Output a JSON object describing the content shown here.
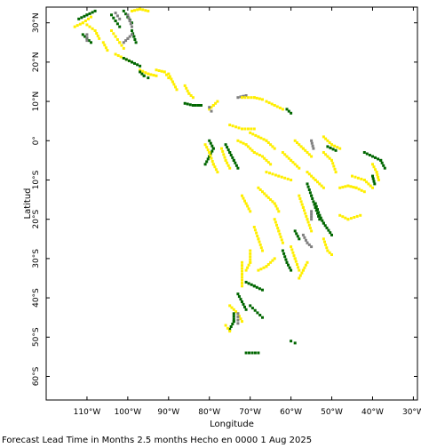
{
  "map": {
    "x_axis_title": "Longitude",
    "y_axis_title": "Latitud",
    "caption": "Forecast Lead Time in Months 2.5 months Hecho en 0000 1 Aug 2025",
    "lon_range": [
      -120,
      -29
    ],
    "lat_range": [
      -66,
      34
    ],
    "lon_ticks": [
      {
        "value": -110,
        "label": "110°W"
      },
      {
        "value": -100,
        "label": "100°W"
      },
      {
        "value": -90,
        "label": "90°W"
      },
      {
        "value": -80,
        "label": "80°W"
      },
      {
        "value": -70,
        "label": "70°W"
      },
      {
        "value": -60,
        "label": "60°W"
      },
      {
        "value": -50,
        "label": "50°W"
      },
      {
        "value": -40,
        "label": "40°W"
      },
      {
        "value": -30,
        "label": "30°W"
      }
    ],
    "lat_ticks": [
      {
        "value": 30,
        "label": "30°N"
      },
      {
        "value": 20,
        "label": "20°N"
      },
      {
        "value": 10,
        "label": "10°N"
      },
      {
        "value": 0,
        "label": "0°"
      },
      {
        "value": -10,
        "label": "10°S"
      },
      {
        "value": -20,
        "label": "20°S"
      },
      {
        "value": -30,
        "label": "30°S"
      },
      {
        "value": -40,
        "label": "40°S"
      },
      {
        "value": -50,
        "label": "50°S"
      },
      {
        "value": -60,
        "label": "60°S"
      }
    ],
    "category_colors": {
      "yellow": "#ffee00",
      "green": "#006600",
      "gray": "#808080",
      "lightgreen": "#33cc33"
    },
    "segments": [
      {
        "c": "green",
        "pts": [
          [
            -112,
            31
          ],
          [
            -110,
            32
          ],
          [
            -108,
            33
          ]
        ]
      },
      {
        "c": "yellow",
        "pts": [
          [
            -113,
            29
          ],
          [
            -111,
            30
          ],
          [
            -109,
            31.5
          ]
        ]
      },
      {
        "c": "green",
        "pts": [
          [
            -111,
            27
          ],
          [
            -109,
            25
          ]
        ]
      },
      {
        "c": "yellow",
        "pts": [
          [
            -110,
            29.5
          ],
          [
            -108,
            28
          ],
          [
            -107,
            26
          ]
        ]
      },
      {
        "c": "gray",
        "pts": [
          [
            -110,
            27
          ],
          [
            -110,
            25.5
          ]
        ]
      },
      {
        "c": "green",
        "pts": [
          [
            -104,
            32
          ],
          [
            -103,
            30.5
          ],
          [
            -102,
            29
          ]
        ]
      },
      {
        "c": "gray",
        "pts": [
          [
            -103,
            32.5
          ],
          [
            -102,
            31
          ]
        ]
      },
      {
        "c": "green",
        "pts": [
          [
            -101,
            33
          ],
          [
            -100,
            31.5
          ],
          [
            -99,
            30
          ]
        ]
      },
      {
        "c": "gray",
        "pts": [
          [
            -100,
            32
          ],
          [
            -99.5,
            30.5
          ],
          [
            -99,
            29
          ]
        ]
      },
      {
        "c": "yellow",
        "pts": [
          [
            -99,
            33
          ],
          [
            -97,
            33.5
          ],
          [
            -95,
            33
          ]
        ]
      },
      {
        "c": "green",
        "pts": [
          [
            -99,
            28
          ],
          [
            -98.5,
            26.5
          ],
          [
            -98,
            25
          ]
        ]
      },
      {
        "c": "gray",
        "pts": [
          [
            -99,
            27
          ],
          [
            -100,
            26
          ],
          [
            -101,
            25
          ]
        ]
      },
      {
        "c": "yellow",
        "pts": [
          [
            -104,
            28
          ],
          [
            -103,
            26.5
          ],
          [
            -102,
            25
          ],
          [
            -101,
            23.5
          ]
        ]
      },
      {
        "c": "yellow",
        "pts": [
          [
            -106,
            25
          ],
          [
            -105,
            23
          ]
        ]
      },
      {
        "c": "yellow",
        "pts": [
          [
            -103,
            22
          ],
          [
            -101,
            21
          ],
          [
            -99,
            20
          ]
        ]
      },
      {
        "c": "green",
        "pts": [
          [
            -101,
            21
          ],
          [
            -99,
            20
          ],
          [
            -97,
            19
          ]
        ]
      },
      {
        "c": "yellow",
        "pts": [
          [
            -97,
            18
          ],
          [
            -95,
            17
          ],
          [
            -93,
            16.5
          ]
        ]
      },
      {
        "c": "green",
        "pts": [
          [
            -97,
            17.5
          ],
          [
            -96,
            16.5
          ],
          [
            -95,
            16
          ]
        ]
      },
      {
        "c": "yellow",
        "pts": [
          [
            -93,
            18
          ],
          [
            -91,
            17.5
          ],
          [
            -90,
            16
          ]
        ]
      },
      {
        "c": "yellow",
        "pts": [
          [
            -90,
            17
          ],
          [
            -89,
            15
          ],
          [
            -88,
            13
          ]
        ]
      },
      {
        "c": "yellow",
        "pts": [
          [
            -86,
            14
          ],
          [
            -85,
            12
          ],
          [
            -84,
            11
          ]
        ]
      },
      {
        "c": "green",
        "pts": [
          [
            -86,
            9.5
          ],
          [
            -84,
            9
          ],
          [
            -82,
            9
          ]
        ]
      },
      {
        "c": "yellow",
        "pts": [
          [
            -80,
            8
          ],
          [
            -79,
            9
          ],
          [
            -78,
            10
          ]
        ]
      },
      {
        "c": "gray",
        "pts": [
          [
            -80,
            8.5
          ],
          [
            -79.5,
            7.5
          ]
        ]
      },
      {
        "c": "gray",
        "pts": [
          [
            -73,
            11
          ],
          [
            -71,
            11.5
          ]
        ]
      },
      {
        "c": "yellow",
        "pts": [
          [
            -72,
            11
          ],
          [
            -69,
            11
          ],
          [
            -67,
            10.5
          ]
        ]
      },
      {
        "c": "yellow",
        "pts": [
          [
            -66,
            10
          ],
          [
            -64,
            9
          ],
          [
            -62,
            8
          ]
        ]
      },
      {
        "c": "green",
        "pts": [
          [
            -61,
            8
          ],
          [
            -60,
            7
          ]
        ]
      },
      {
        "c": "green",
        "pts": [
          [
            -80,
            0
          ],
          [
            -79,
            -2
          ],
          [
            -80,
            -4
          ],
          [
            -81,
            -6
          ]
        ]
      },
      {
        "c": "yellow",
        "pts": [
          [
            -81,
            -1
          ],
          [
            -80,
            -3
          ],
          [
            -79,
            -6
          ],
          [
            -78,
            -8
          ]
        ]
      },
      {
        "c": "green",
        "pts": [
          [
            -76,
            -1
          ],
          [
            -75,
            -3
          ],
          [
            -74,
            -5
          ],
          [
            -73,
            -7
          ]
        ]
      },
      {
        "c": "yellow",
        "pts": [
          [
            -77,
            -2
          ],
          [
            -76,
            -5
          ],
          [
            -75,
            -7
          ]
        ]
      },
      {
        "c": "yellow",
        "pts": [
          [
            -73,
            0
          ],
          [
            -71,
            -1
          ],
          [
            -69,
            -3
          ],
          [
            -67,
            -4
          ],
          [
            -65,
            -6
          ]
        ]
      },
      {
        "c": "yellow",
        "pts": [
          [
            -70,
            2
          ],
          [
            -68,
            1
          ],
          [
            -66,
            0
          ],
          [
            -64,
            -2
          ]
        ]
      },
      {
        "c": "yellow",
        "pts": [
          [
            -75,
            4
          ],
          [
            -72,
            3
          ],
          [
            -69,
            3
          ]
        ]
      },
      {
        "c": "yellow",
        "pts": [
          [
            -66,
            -8
          ],
          [
            -63,
            -9
          ],
          [
            -60,
            -10
          ]
        ]
      },
      {
        "c": "yellow",
        "pts": [
          [
            -62,
            -3
          ],
          [
            -60,
            -5
          ],
          [
            -58,
            -7
          ]
        ]
      },
      {
        "c": "yellow",
        "pts": [
          [
            -59,
            0
          ],
          [
            -57,
            -2
          ],
          [
            -55,
            -4
          ]
        ]
      },
      {
        "c": "gray",
        "pts": [
          [
            -55,
            0
          ],
          [
            -54.5,
            -2
          ]
        ]
      },
      {
        "c": "yellow",
        "pts": [
          [
            -52,
            1
          ],
          [
            -50,
            -1
          ],
          [
            -48,
            -2
          ]
        ]
      },
      {
        "c": "green",
        "pts": [
          [
            -51,
            -1.5
          ],
          [
            -49,
            -2.5
          ]
        ]
      },
      {
        "c": "yellow",
        "pts": [
          [
            -52,
            -3
          ],
          [
            -50,
            -5
          ],
          [
            -49,
            -8
          ]
        ]
      },
      {
        "c": "yellow",
        "pts": [
          [
            -56,
            -8
          ],
          [
            -54,
            -10
          ],
          [
            -52,
            -12
          ]
        ]
      },
      {
        "c": "yellow",
        "pts": [
          [
            -45,
            -9
          ],
          [
            -42,
            -10
          ],
          [
            -40,
            -12
          ]
        ]
      },
      {
        "c": "green",
        "pts": [
          [
            -42,
            -3
          ],
          [
            -40,
            -4
          ],
          [
            -38,
            -5
          ],
          [
            -37,
            -7
          ]
        ]
      },
      {
        "c": "yellow",
        "pts": [
          [
            -40,
            -6
          ],
          [
            -39,
            -8
          ],
          [
            -38.5,
            -10
          ]
        ]
      },
      {
        "c": "green",
        "pts": [
          [
            -40,
            -9
          ],
          [
            -39.5,
            -11
          ]
        ]
      },
      {
        "c": "yellow",
        "pts": [
          [
            -48,
            -12
          ],
          [
            -46,
            -11.5
          ],
          [
            -44,
            -12
          ],
          [
            -42,
            -13
          ]
        ]
      },
      {
        "c": "yellow",
        "pts": [
          [
            -68,
            -12
          ],
          [
            -66,
            -14
          ],
          [
            -64,
            -16
          ],
          [
            -63,
            -18
          ]
        ]
      },
      {
        "c": "yellow",
        "pts": [
          [
            -72,
            -14
          ],
          [
            -71,
            -16
          ],
          [
            -70,
            -18
          ]
        ]
      },
      {
        "c": "yellow",
        "pts": [
          [
            -58,
            -14
          ],
          [
            -57,
            -17
          ],
          [
            -56,
            -20
          ],
          [
            -55,
            -23
          ]
        ]
      },
      {
        "c": "green",
        "pts": [
          [
            -56,
            -11
          ],
          [
            -55,
            -14
          ],
          [
            -54,
            -17
          ],
          [
            -53,
            -20
          ]
        ]
      },
      {
        "c": "green",
        "pts": [
          [
            -54,
            -16
          ],
          [
            -53,
            -19
          ],
          [
            -52,
            -21
          ],
          [
            -50,
            -24
          ]
        ]
      },
      {
        "c": "gray",
        "pts": [
          [
            -55,
            -18
          ],
          [
            -55,
            -20
          ]
        ]
      },
      {
        "c": "yellow",
        "pts": [
          [
            -64,
            -20
          ],
          [
            -63,
            -23
          ],
          [
            -62,
            -26
          ]
        ]
      },
      {
        "c": "yellow",
        "pts": [
          [
            -69,
            -22
          ],
          [
            -68,
            -25
          ],
          [
            -67,
            -28
          ]
        ]
      },
      {
        "c": "gray",
        "pts": [
          [
            -57,
            -24
          ],
          [
            -56,
            -26
          ],
          [
            -55,
            -27
          ]
        ]
      },
      {
        "c": "green",
        "pts": [
          [
            -59,
            -23
          ],
          [
            -58,
            -25
          ]
        ]
      },
      {
        "c": "yellow",
        "pts": [
          [
            -52,
            -25
          ],
          [
            -51,
            -28
          ],
          [
            -50,
            -29
          ]
        ]
      },
      {
        "c": "yellow",
        "pts": [
          [
            -48,
            -19
          ],
          [
            -46,
            -20
          ],
          [
            -43,
            -19
          ]
        ]
      },
      {
        "c": "yellow",
        "pts": [
          [
            -60,
            -27
          ],
          [
            -59,
            -30
          ],
          [
            -58,
            -33
          ]
        ]
      },
      {
        "c": "green",
        "pts": [
          [
            -62,
            -28
          ],
          [
            -61,
            -31
          ],
          [
            -60,
            -33
          ]
        ]
      },
      {
        "c": "yellow",
        "pts": [
          [
            -64,
            -30
          ],
          [
            -66,
            -32
          ],
          [
            -68,
            -33
          ]
        ]
      },
      {
        "c": "yellow",
        "pts": [
          [
            -70,
            -28
          ],
          [
            -70,
            -31
          ],
          [
            -71,
            -33
          ]
        ]
      },
      {
        "c": "yellow",
        "pts": [
          [
            -56,
            -31
          ],
          [
            -57,
            -33
          ],
          [
            -58,
            -35
          ]
        ]
      },
      {
        "c": "green",
        "pts": [
          [
            -71,
            -36
          ],
          [
            -69,
            -37
          ],
          [
            -67,
            -38
          ]
        ]
      },
      {
        "c": "yellow",
        "pts": [
          [
            -72,
            -31
          ],
          [
            -72,
            -34
          ],
          [
            -72,
            -37
          ]
        ]
      },
      {
        "c": "green",
        "pts": [
          [
            -73,
            -39
          ],
          [
            -72,
            -41
          ],
          [
            -71,
            -43
          ]
        ]
      },
      {
        "c": "yellow",
        "pts": [
          [
            -75,
            -42
          ],
          [
            -73,
            -44
          ],
          [
            -72,
            -46
          ]
        ]
      },
      {
        "c": "green",
        "pts": [
          [
            -74,
            -44
          ],
          [
            -74,
            -46
          ],
          [
            -75,
            -48
          ]
        ]
      },
      {
        "c": "gray",
        "pts": [
          [
            -73,
            -44
          ],
          [
            -73,
            -46.5
          ]
        ]
      },
      {
        "c": "green",
        "pts": [
          [
            -70,
            -42
          ],
          [
            -67,
            -45
          ]
        ]
      },
      {
        "c": "yellow",
        "pts": [
          [
            -76,
            -47
          ],
          [
            -75,
            -48.5
          ]
        ]
      },
      {
        "c": "green",
        "pts": [
          [
            -71,
            -54
          ],
          [
            -68,
            -54
          ]
        ]
      },
      {
        "c": "green",
        "pts": [
          [
            -60,
            -51
          ],
          [
            -59,
            -51.5
          ]
        ]
      }
    ]
  }
}
